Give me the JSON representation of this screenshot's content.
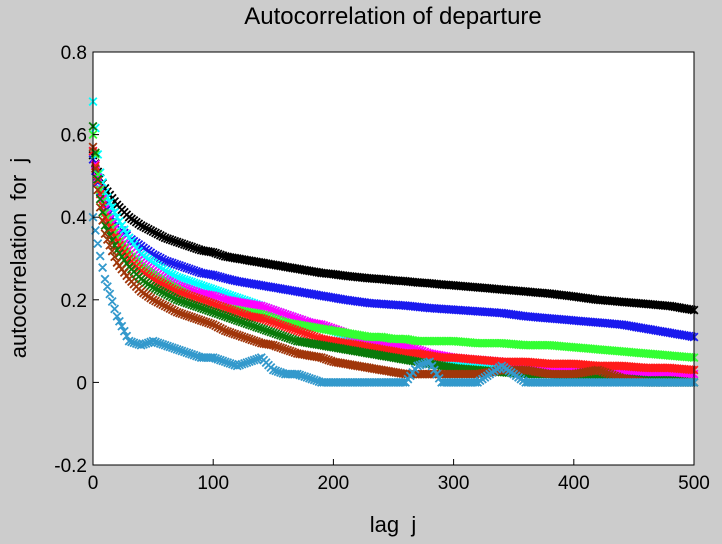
{
  "chart_data": {
    "type": "scatter",
    "title": "Autocorrelation of departure",
    "xlabel": "lag  j",
    "ylabel": "autocorrelation  for  j",
    "xlim": [
      0,
      500
    ],
    "ylim": [
      -0.2,
      0.8
    ],
    "xticks": [
      0,
      100,
      200,
      300,
      400,
      500
    ],
    "yticks": [
      -0.2,
      0,
      0.2,
      0.4,
      0.6,
      0.8
    ],
    "xtick_labels": [
      "0",
      "100",
      "200",
      "300",
      "400",
      "500"
    ],
    "ytick_labels": [
      "-0.2",
      "0",
      "0.2",
      "0.4",
      "0.6",
      "0.8"
    ],
    "grid": false,
    "legend": "none",
    "marker": "x",
    "x": [
      0,
      5,
      10,
      20,
      30,
      40,
      50,
      60,
      70,
      80,
      90,
      100,
      110,
      120,
      130,
      140,
      150,
      160,
      170,
      180,
      190,
      200,
      210,
      220,
      230,
      240,
      250,
      260,
      270,
      280,
      290,
      300,
      320,
      340,
      360,
      380,
      400,
      420,
      440,
      460,
      480,
      500
    ],
    "series": [
      {
        "color": "#000000",
        "values": [
          0.55,
          0.5,
          0.47,
          0.43,
          0.4,
          0.38,
          0.365,
          0.35,
          0.34,
          0.33,
          0.32,
          0.315,
          0.305,
          0.3,
          0.295,
          0.29,
          0.285,
          0.28,
          0.275,
          0.27,
          0.265,
          0.262,
          0.258,
          0.255,
          0.252,
          0.25,
          0.247,
          0.245,
          0.242,
          0.24,
          0.237,
          0.235,
          0.23,
          0.225,
          0.22,
          0.215,
          0.208,
          0.2,
          0.195,
          0.19,
          0.185,
          0.175
        ]
      },
      {
        "color": "#1a1aee",
        "values": [
          0.54,
          0.47,
          0.43,
          0.38,
          0.35,
          0.33,
          0.31,
          0.295,
          0.285,
          0.275,
          0.265,
          0.26,
          0.252,
          0.245,
          0.24,
          0.235,
          0.23,
          0.225,
          0.22,
          0.215,
          0.21,
          0.205,
          0.2,
          0.196,
          0.192,
          0.19,
          0.188,
          0.186,
          0.183,
          0.18,
          0.178,
          0.176,
          0.172,
          0.168,
          0.16,
          0.155,
          0.15,
          0.145,
          0.14,
          0.13,
          0.12,
          0.11
        ]
      },
      {
        "color": "#00ffff",
        "values": [
          0.68,
          0.52,
          0.46,
          0.4,
          0.35,
          0.31,
          0.29,
          0.27,
          0.255,
          0.245,
          0.235,
          0.225,
          0.215,
          0.205,
          0.195,
          0.185,
          0.175,
          0.165,
          0.155,
          0.145,
          0.135,
          0.125,
          0.115,
          0.105,
          0.1,
          0.09,
          0.085,
          0.08,
          0.07,
          0.06,
          0.05,
          0.045,
          0.04,
          0.035,
          0.03,
          0.02,
          0.015,
          0.01,
          0.01,
          0.0,
          0.0,
          0.0
        ]
      },
      {
        "color": "#ff00ff",
        "values": [
          0.56,
          0.48,
          0.42,
          0.36,
          0.32,
          0.29,
          0.27,
          0.25,
          0.235,
          0.225,
          0.215,
          0.21,
          0.2,
          0.195,
          0.19,
          0.185,
          0.175,
          0.165,
          0.155,
          0.145,
          0.14,
          0.13,
          0.12,
          0.11,
          0.105,
          0.1,
          0.095,
          0.09,
          0.08,
          0.07,
          0.065,
          0.06,
          0.055,
          0.05,
          0.045,
          0.035,
          0.03,
          0.03,
          0.025,
          0.02,
          0.02,
          0.02
        ]
      },
      {
        "color": "#33ff33",
        "values": [
          0.6,
          0.48,
          0.41,
          0.35,
          0.31,
          0.28,
          0.26,
          0.24,
          0.225,
          0.21,
          0.2,
          0.19,
          0.18,
          0.175,
          0.17,
          0.165,
          0.155,
          0.145,
          0.14,
          0.135,
          0.13,
          0.125,
          0.12,
          0.115,
          0.11,
          0.11,
          0.105,
          0.105,
          0.1,
          0.1,
          0.1,
          0.1,
          0.095,
          0.095,
          0.09,
          0.09,
          0.085,
          0.08,
          0.075,
          0.07,
          0.065,
          0.06
        ]
      },
      {
        "color": "#ff1a1a",
        "values": [
          0.56,
          0.47,
          0.4,
          0.34,
          0.3,
          0.27,
          0.25,
          0.235,
          0.22,
          0.21,
          0.2,
          0.19,
          0.18,
          0.17,
          0.16,
          0.155,
          0.145,
          0.135,
          0.125,
          0.115,
          0.105,
          0.1,
          0.095,
          0.09,
          0.085,
          0.08,
          0.075,
          0.07,
          0.07,
          0.065,
          0.06,
          0.06,
          0.055,
          0.05,
          0.05,
          0.045,
          0.045,
          0.04,
          0.04,
          0.035,
          0.035,
          0.03
        ]
      },
      {
        "color": "#0a7a0a",
        "values": [
          0.62,
          0.46,
          0.38,
          0.32,
          0.28,
          0.25,
          0.23,
          0.215,
          0.2,
          0.19,
          0.18,
          0.17,
          0.16,
          0.15,
          0.14,
          0.13,
          0.12,
          0.11,
          0.1,
          0.095,
          0.09,
          0.085,
          0.08,
          0.075,
          0.07,
          0.065,
          0.06,
          0.055,
          0.05,
          0.045,
          0.04,
          0.035,
          0.03,
          0.025,
          0.02,
          0.02,
          0.015,
          0.01,
          0.01,
          0.005,
          0.005,
          0.0
        ]
      },
      {
        "color": "#a0360a",
        "values": [
          0.57,
          0.44,
          0.36,
          0.29,
          0.25,
          0.22,
          0.2,
          0.185,
          0.17,
          0.16,
          0.15,
          0.14,
          0.125,
          0.115,
          0.105,
          0.095,
          0.09,
          0.08,
          0.07,
          0.065,
          0.06,
          0.05,
          0.045,
          0.04,
          0.035,
          0.03,
          0.025,
          0.02,
          0.02,
          0.02,
          0.02,
          0.02,
          0.02,
          0.03,
          0.03,
          0.02,
          0.02,
          0.03,
          0.01,
          0.0,
          0.0,
          0.0
        ]
      },
      {
        "color": "#3399cc",
        "values": [
          0.4,
          0.32,
          0.25,
          0.16,
          0.1,
          0.09,
          0.1,
          0.09,
          0.08,
          0.07,
          0.06,
          0.06,
          0.05,
          0.04,
          0.05,
          0.06,
          0.03,
          0.02,
          0.02,
          0.01,
          0.0,
          0.0,
          0.0,
          0.0,
          0.0,
          0.0,
          0.0,
          0.0,
          0.04,
          0.05,
          0.0,
          0.0,
          0.0,
          0.04,
          0.0,
          0.0,
          0.0,
          0.0,
          0.0,
          0.0,
          0.0,
          0.0
        ]
      }
    ]
  }
}
